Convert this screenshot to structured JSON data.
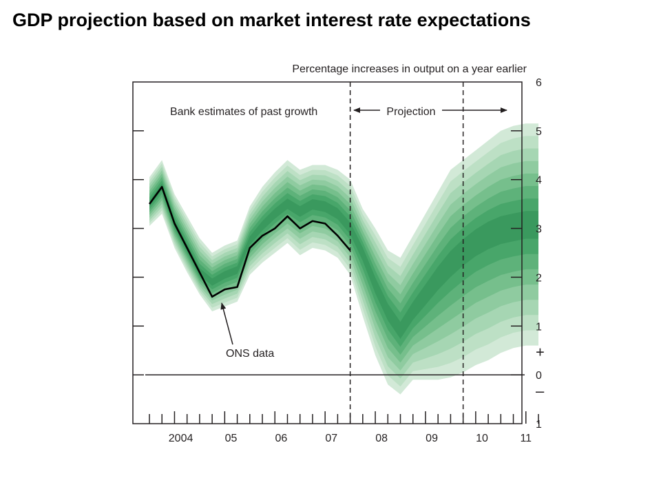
{
  "page_title": "GDP projection based on market interest rate expectations",
  "chart_data": {
    "type": "area",
    "title": "GDP projection based on market interest rate expectations",
    "ylabel": "Percentage increases in output on a year earlier",
    "ylim": [
      -1,
      6
    ],
    "xlim": [
      2003.5,
      2011.25
    ],
    "y_ticks": [
      {
        "value": 6,
        "label": "6"
      },
      {
        "value": 5,
        "label": "5"
      },
      {
        "value": 4,
        "label": "4"
      },
      {
        "value": 3,
        "label": "3"
      },
      {
        "value": 2,
        "label": "2"
      },
      {
        "value": 1,
        "label": "1"
      },
      {
        "value": 0.45,
        "label": "+"
      },
      {
        "value": 0,
        "label": "0"
      },
      {
        "value": -0.35,
        "label": "–"
      },
      {
        "value": -1,
        "label": "1"
      }
    ],
    "x_ticks": [
      {
        "value": 2004.125,
        "label": "2004"
      },
      {
        "value": 2005.125,
        "label": "05"
      },
      {
        "value": 2006.125,
        "label": "06"
      },
      {
        "value": 2007.125,
        "label": "07"
      },
      {
        "value": 2008.125,
        "label": "08"
      },
      {
        "value": 2009.125,
        "label": "09"
      },
      {
        "value": 2010.125,
        "label": "10"
      },
      {
        "value": 2011,
        "label": "11"
      }
    ],
    "quarters_start": 2003.5,
    "quarters_end": 2011.25,
    "series": [
      {
        "name": "ONS data",
        "x": [
          2003.5,
          2003.75,
          2004.0,
          2004.25,
          2004.5,
          2004.75,
          2005.0,
          2005.25,
          2005.5,
          2005.75,
          2006.0,
          2006.25,
          2006.5,
          2006.75,
          2007.0,
          2007.25,
          2007.5
        ],
        "values": [
          3.5,
          3.85,
          3.1,
          2.6,
          2.1,
          1.6,
          1.75,
          1.8,
          2.6,
          2.85,
          3.0,
          3.25,
          3.0,
          3.15,
          3.1,
          2.85,
          2.55
        ]
      }
    ],
    "fan": {
      "x": [
        2003.5,
        2003.75,
        2004.0,
        2004.25,
        2004.5,
        2004.75,
        2005.0,
        2005.25,
        2005.5,
        2005.75,
        2006.0,
        2006.25,
        2006.5,
        2006.75,
        2007.0,
        2007.25,
        2007.5,
        2007.75,
        2008.0,
        2008.25,
        2008.5,
        2008.75,
        2009.0,
        2009.25,
        2009.5,
        2009.75,
        2010.0,
        2010.25,
        2010.5,
        2010.75,
        2011.0,
        2011.25
      ],
      "center": [
        3.5,
        3.85,
        3.1,
        2.6,
        2.1,
        1.9,
        2.05,
        2.15,
        2.75,
        3.05,
        3.3,
        3.5,
        3.35,
        3.5,
        3.45,
        3.3,
        3.0,
        2.5,
        1.85,
        1.3,
        0.9,
        1.3,
        1.65,
        2.0,
        2.3,
        2.55,
        2.75,
        2.9,
        3.0,
        3.05,
        3.1,
        3.1
      ],
      "upper_outer": [
        4.05,
        4.4,
        3.7,
        3.25,
        2.8,
        2.5,
        2.65,
        2.75,
        3.45,
        3.85,
        4.15,
        4.4,
        4.2,
        4.3,
        4.3,
        4.2,
        4.0,
        3.4,
        3.0,
        2.55,
        2.4,
        2.85,
        3.3,
        3.75,
        4.2,
        4.4,
        4.6,
        4.8,
        5.0,
        5.1,
        5.15,
        5.15
      ],
      "lower_outer": [
        3.05,
        3.3,
        2.6,
        2.1,
        1.65,
        1.3,
        1.4,
        1.5,
        2.05,
        2.3,
        2.5,
        2.7,
        2.45,
        2.6,
        2.55,
        2.4,
        2.05,
        1.2,
        0.4,
        -0.2,
        -0.4,
        -0.1,
        -0.1,
        -0.1,
        -0.05,
        0.05,
        0.2,
        0.3,
        0.45,
        0.55,
        0.6,
        0.6
      ],
      "colors": [
        "#d2e9d7",
        "#bde0c5",
        "#a6d6b3",
        "#8fcba0",
        "#76bf8c",
        "#5eb27a",
        "#48a66a",
        "#3a995e"
      ]
    },
    "annotations": {
      "past_growth": "Bank estimates of past growth",
      "projection": "Projection",
      "ons_label": "ONS data"
    },
    "projection_start": 2007.5,
    "vertical_lines": [
      2007.5,
      2009.75
    ]
  }
}
